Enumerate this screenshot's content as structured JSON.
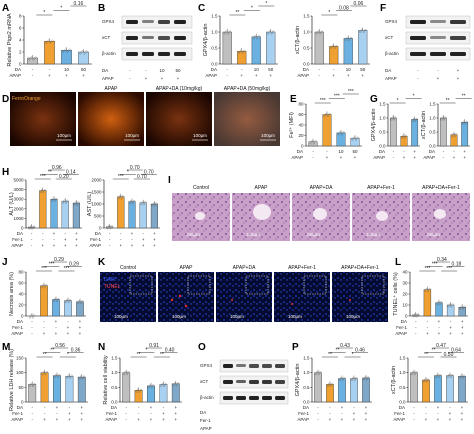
{
  "panels": {
    "A": "A",
    "B": "B",
    "C": "C",
    "D": "D",
    "E": "E",
    "F": "F",
    "G": "G",
    "H": "H",
    "I": "I",
    "J": "J",
    "K": "K",
    "L": "L",
    "M": "M",
    "N": "N",
    "O": "O",
    "P": "P"
  },
  "rowlabels": {
    "DA": "DA",
    "APAP": "APAP",
    "Fer1": "Fer-1",
    "plus": "+",
    "minus": "-",
    "d10": "10",
    "d50": "50"
  },
  "blots": {
    "gpx4": "GPX4",
    "xct": "xCT",
    "bactin": "β-actin"
  },
  "micro": {
    "D": [
      "FerroOrange",
      "APAP",
      "APAP+DA (10mg/kg)",
      "APAP+DA (50mg/kg)"
    ],
    "I": [
      "Control",
      "APAP",
      "APAP+DA",
      "APAP+Fer-1",
      "APAP+DA+Fer-1"
    ],
    "K": [
      "Control",
      "APAP",
      "APAP+DA",
      "APAP+Fer-1",
      "APAP+DA+Fer-1"
    ],
    "K_stain": [
      "DAPI",
      "TUNEL"
    ],
    "scale": "100μm"
  },
  "chart_data": [
    {
      "id": "A",
      "type": "bar",
      "ylabel": "Relative Ptgs2 mRNA",
      "ylim": [
        0,
        8
      ],
      "yticks": [
        "0",
        "2",
        "4",
        "6",
        "8"
      ],
      "values": [
        1.0,
        3.8,
        2.3,
        2.0
      ],
      "colors": [
        "#bfbfbf",
        "#f0a030",
        "#6ab0e0",
        "#a8d0f0"
      ],
      "sig": [
        "*",
        "*",
        "0.16"
      ]
    },
    {
      "id": "C1",
      "type": "bar",
      "ylabel": "GPX4/β-actin",
      "ylim": [
        0,
        1.5
      ],
      "yticks": [
        "0.0",
        "0.5",
        "1.0",
        "1.5"
      ],
      "values": [
        1.0,
        0.4,
        0.85,
        1.0
      ],
      "colors": [
        "#bfbfbf",
        "#f0a030",
        "#6ab0e0",
        "#a8d0f0"
      ],
      "sig": [
        "**",
        "*",
        "*"
      ]
    },
    {
      "id": "C2",
      "type": "bar",
      "ylabel": "xCT/β-actin",
      "ylim": [
        0,
        1.5
      ],
      "yticks": [
        "0.0",
        "0.5",
        "1.0",
        "1.5"
      ],
      "values": [
        1.0,
        0.55,
        0.8,
        1.05
      ],
      "colors": [
        "#bfbfbf",
        "#f0a030",
        "#6ab0e0",
        "#a8d0f0"
      ],
      "sig": [
        "*",
        "0.08",
        "0.06"
      ]
    },
    {
      "id": "E",
      "type": "bar",
      "ylabel": "Fe²⁺ (MFI)",
      "ylim": [
        0,
        80
      ],
      "yticks": [
        "0",
        "20",
        "40",
        "60",
        "80"
      ],
      "values": [
        8,
        60,
        25,
        15
      ],
      "colors": [
        "#bfbfbf",
        "#f0a030",
        "#6ab0e0",
        "#a8d0f0"
      ],
      "sig": [
        "***",
        "***",
        "***"
      ]
    },
    {
      "id": "G1",
      "type": "bar",
      "ylabel": "GPX4/β-actin",
      "ylim": [
        0,
        1.5
      ],
      "yticks": [
        "0.0",
        "0.5",
        "1.0",
        "1.5"
      ],
      "values": [
        1.0,
        0.35,
        0.95
      ],
      "colors": [
        "#bfbfbf",
        "#f0a030",
        "#6ab0e0"
      ],
      "sig": [
        "*",
        "*"
      ]
    },
    {
      "id": "G2",
      "type": "bar",
      "ylabel": "xCT/β-actin",
      "ylim": [
        0,
        1.5
      ],
      "yticks": [
        "0.0",
        "0.5",
        "1.0",
        "1.5"
      ],
      "values": [
        1.0,
        0.4,
        0.85
      ],
      "colors": [
        "#bfbfbf",
        "#f0a030",
        "#6ab0e0"
      ],
      "sig": [
        "**",
        "**"
      ]
    },
    {
      "id": "H1",
      "type": "bar",
      "ylabel": "ALT (U/L)",
      "ylim": [
        0,
        5000
      ],
      "yticks": [
        "0",
        "1000",
        "2000",
        "3000",
        "4000",
        "5000"
      ],
      "values": [
        100,
        3900,
        3000,
        2800,
        2600
      ],
      "colors": [
        "#bfbfbf",
        "#f0a030",
        "#6ab0e0",
        "#a8d0f0",
        "#7fa8c8"
      ],
      "sig": [
        "***",
        "**",
        "0.96",
        "0.20",
        "0.14"
      ]
    },
    {
      "id": "H2",
      "type": "bar",
      "ylabel": "AST (U/L)",
      "ylim": [
        0,
        2000
      ],
      "yticks": [
        "0",
        "500",
        "1000",
        "1500",
        "2000"
      ],
      "values": [
        50,
        1300,
        1100,
        1050,
        1000
      ],
      "colors": [
        "#bfbfbf",
        "#f0a030",
        "#6ab0e0",
        "#a8d0f0",
        "#7fa8c8"
      ],
      "sig": [
        "***",
        "*",
        "0.70",
        "0.70",
        "0.70"
      ]
    },
    {
      "id": "J",
      "type": "bar",
      "ylabel": "Necrosis area (%)",
      "ylim": [
        0,
        80
      ],
      "yticks": [
        "0",
        "20",
        "40",
        "60",
        "80"
      ],
      "values": [
        0,
        55,
        30,
        28,
        26
      ],
      "colors": [
        "#bfbfbf",
        "#f0a030",
        "#6ab0e0",
        "#a8d0f0",
        "#7fa8c8"
      ],
      "sig": [
        "***",
        "***",
        "0.29",
        "***",
        "0.29"
      ]
    },
    {
      "id": "L",
      "type": "bar",
      "ylabel": "TUNEL⁺ cells (%)",
      "ylim": [
        0,
        40
      ],
      "yticks": [
        "0",
        "10",
        "20",
        "30",
        "40"
      ],
      "values": [
        1,
        24,
        12,
        10,
        8
      ],
      "colors": [
        "#bfbfbf",
        "#f0a030",
        "#6ab0e0",
        "#a8d0f0",
        "#7fa8c8"
      ],
      "sig": [
        "***",
        "***",
        "0.34",
        "***",
        "0.18"
      ]
    },
    {
      "id": "M",
      "type": "bar",
      "ylabel": "Relative LDH release (%)",
      "ylim": [
        0,
        150
      ],
      "yticks": [
        "0",
        "50",
        "100",
        "150"
      ],
      "values": [
        60,
        100,
        90,
        88,
        85
      ],
      "colors": [
        "#bfbfbf",
        "#f0a030",
        "#6ab0e0",
        "#a8d0f0",
        "#7fa8c8"
      ],
      "sig": [
        "**",
        "**",
        "0.56",
        "*",
        "0.36"
      ]
    },
    {
      "id": "N",
      "type": "bar",
      "ylabel": "Relative cell viability",
      "ylim": [
        0,
        1.5
      ],
      "yticks": [
        "0.0",
        "0.5",
        "1.0",
        "1.5"
      ],
      "values": [
        1.0,
        0.4,
        0.55,
        0.6,
        0.62
      ],
      "colors": [
        "#bfbfbf",
        "#f0a030",
        "#6ab0e0",
        "#a8d0f0",
        "#7fa8c8"
      ],
      "sig": [
        "**",
        "*",
        "0.91",
        "**",
        "0.40"
      ]
    },
    {
      "id": "P1",
      "type": "bar",
      "ylabel": "GPX4/β-actin",
      "ylim": [
        0,
        1.5
      ],
      "yticks": [
        "0.0",
        "0.5",
        "1.0",
        "1.5"
      ],
      "values": [
        1.0,
        0.6,
        0.8,
        0.8,
        0.82
      ],
      "colors": [
        "#bfbfbf",
        "#f0a030",
        "#6ab0e0",
        "#a8d0f0",
        "#7fa8c8"
      ],
      "sig": [
        "**",
        "**",
        "0.43",
        "*",
        "0.46"
      ]
    },
    {
      "id": "P2",
      "type": "bar",
      "ylabel": "xCT/β-actin",
      "ylim": [
        0,
        1.5
      ],
      "yticks": [
        "0.0",
        "0.5",
        "1.0",
        "1.5"
      ],
      "values": [
        1.0,
        0.75,
        0.9,
        0.9,
        0.88
      ],
      "colors": [
        "#bfbfbf",
        "#f0a030",
        "#6ab0e0",
        "#a8d0f0",
        "#7fa8c8"
      ],
      "sig": [
        "**",
        "**",
        "0.47",
        "0.50",
        "0.64"
      ]
    }
  ]
}
